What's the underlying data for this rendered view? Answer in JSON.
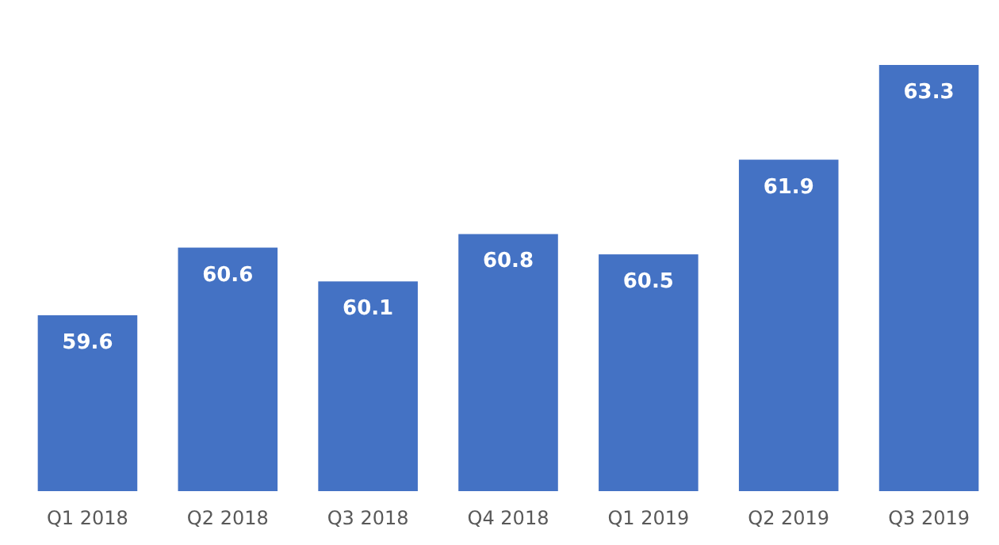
{
  "chart_data": {
    "type": "bar",
    "categories": [
      "Q1 2018",
      "Q2 2018",
      "Q3 2018",
      "Q4 2018",
      "Q1 2019",
      "Q2 2019",
      "Q3 2019"
    ],
    "values": [
      59.6,
      60.6,
      60.1,
      60.8,
      60.5,
      61.9,
      63.3
    ],
    "color": "#4472c4",
    "ylim": [
      57,
      63.3
    ],
    "data_labels": true,
    "tick_labels": "x"
  }
}
